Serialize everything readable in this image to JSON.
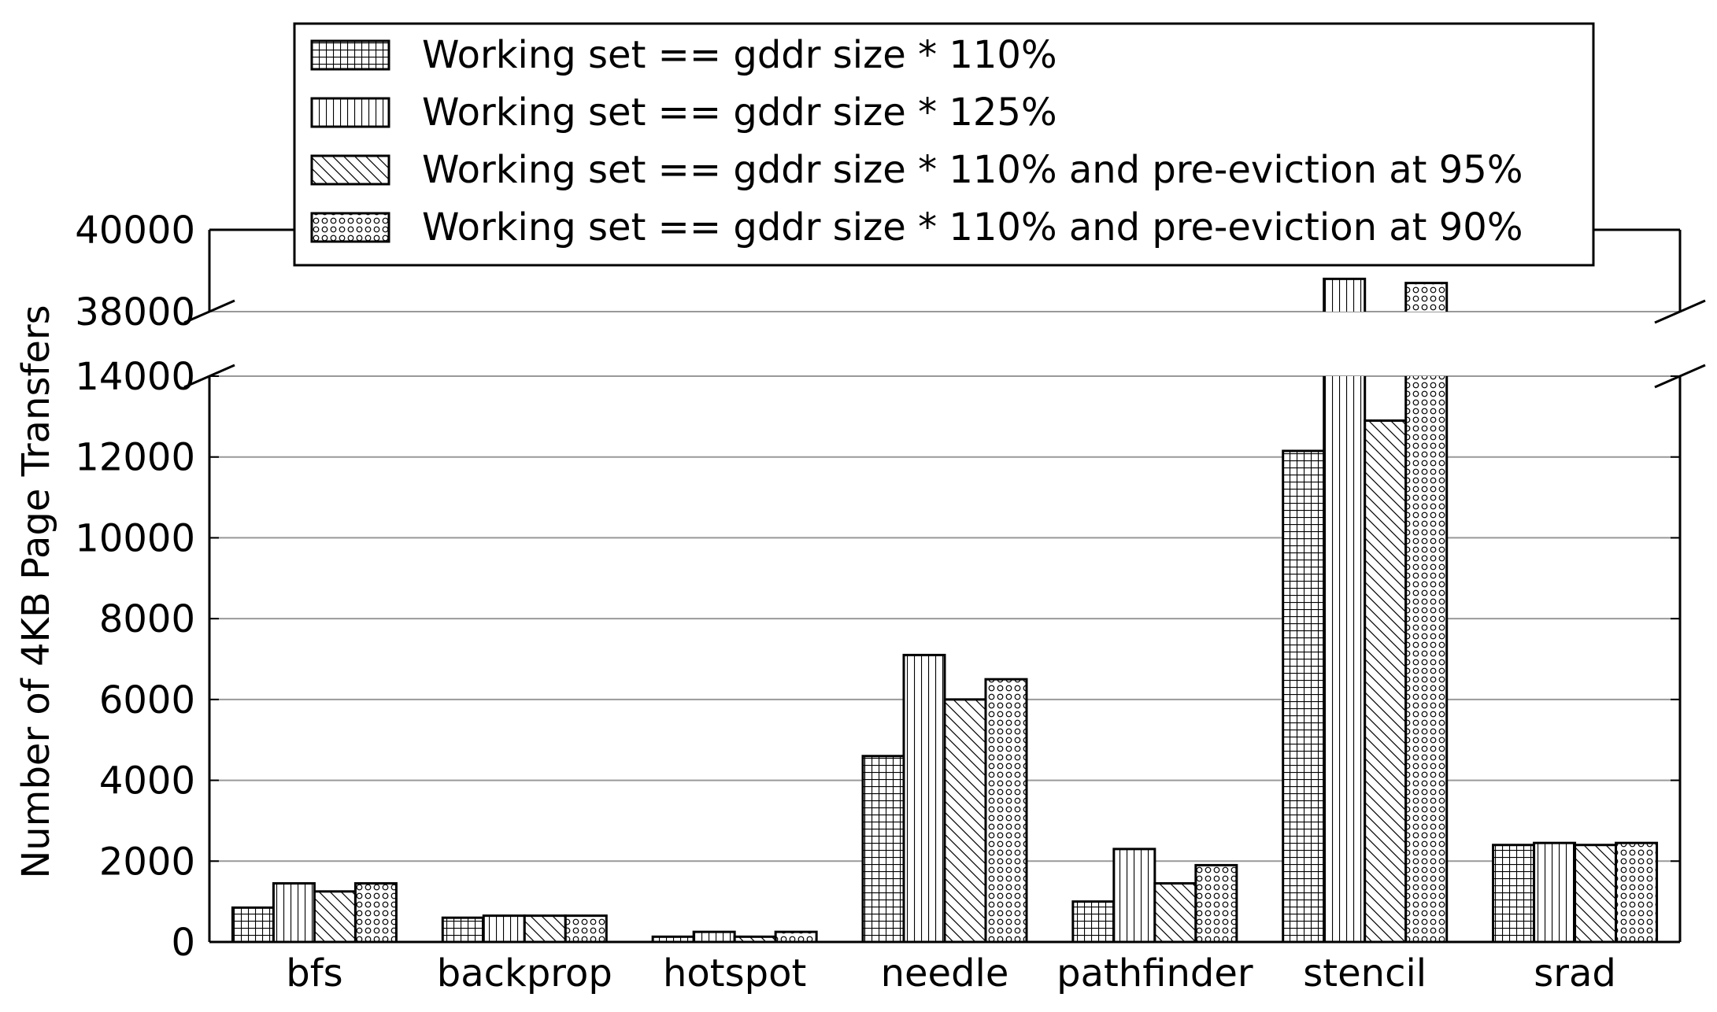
{
  "chart_data": {
    "type": "bar",
    "title": "",
    "xlabel": "",
    "ylabel": "Number of 4KB Page Transfers",
    "categories": [
      "bfs",
      "backprop",
      "hotspot",
      "needle",
      "pathfinder",
      "stencil",
      "srad"
    ],
    "series": [
      {
        "name": "Working set == gddr size * 110%",
        "pattern": "grid",
        "values": [
          850,
          600,
          130,
          4600,
          1000,
          12150,
          2400
        ]
      },
      {
        "name": "Working set == gddr size * 125%",
        "pattern": "vertical",
        "values": [
          1450,
          650,
          250,
          7100,
          2300,
          38800,
          2450
        ]
      },
      {
        "name": "Working set == gddr size * 110% and pre-eviction at 95%",
        "pattern": "diagonal",
        "values": [
          1250,
          650,
          130,
          6000,
          1450,
          12900,
          2400
        ]
      },
      {
        "name": "Working set == gddr size * 110% and pre-eviction at 90%",
        "pattern": "circles",
        "values": [
          1450,
          650,
          250,
          6500,
          1900,
          38700,
          2450
        ]
      }
    ],
    "axis_break": {
      "lower_range": [
        0,
        14000
      ],
      "upper_range": [
        38000,
        40000
      ]
    },
    "yticks_lower": [
      "0",
      "2000",
      "4000",
      "6000",
      "8000",
      "10000",
      "12000",
      "14000"
    ],
    "yticks_upper": [
      "38000",
      "40000"
    ],
    "grid": "horizontal",
    "legend_position": "top-center",
    "colors": {
      "bar_fill": "#ffffff",
      "bar_stroke": "#000000",
      "grid": "#999999"
    }
  }
}
